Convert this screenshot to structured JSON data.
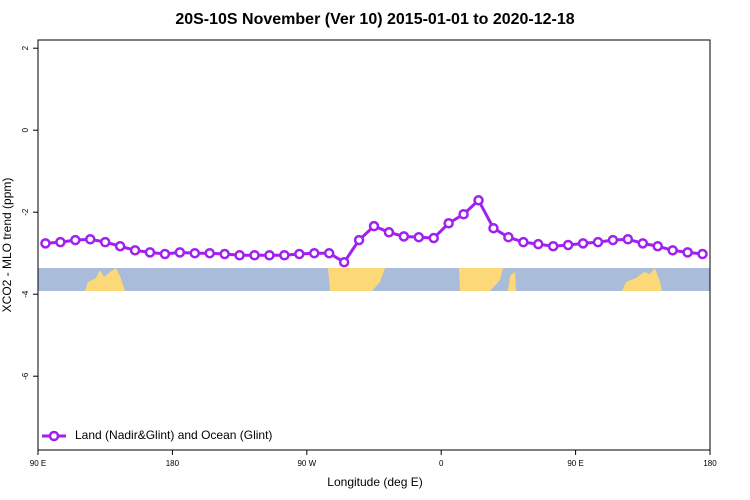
{
  "chart_data": {
    "type": "line",
    "title": "20S-10S November (Ver 10)   2015-01-01 to 2020-12-18",
    "x_label": "Longitude (deg E)",
    "y_label": "XCO2 - MLO trend (ppm)",
    "x": [
      95,
      105,
      115,
      125,
      135,
      145,
      155,
      165,
      175,
      185,
      195,
      205,
      215,
      225,
      235,
      245,
      255,
      265,
      275,
      285,
      295,
      305,
      315,
      325,
      335,
      345,
      355,
      365,
      375,
      385,
      395,
      405,
      415,
      425,
      435,
      445,
      455,
      465,
      475,
      485,
      495,
      505,
      515,
      525,
      535
    ],
    "series": [
      {
        "name": "Land (Nadir&Glint) and Ocean (Glint)",
        "color": "#a020f0",
        "values": [
          -2.76,
          -2.73,
          -2.68,
          -2.66,
          -2.73,
          -2.83,
          -2.93,
          -2.98,
          -3.02,
          -2.98,
          -3.0,
          -3.0,
          -3.02,
          -3.05,
          -3.05,
          -3.05,
          -3.05,
          -3.02,
          -3.0,
          -3.0,
          -3.22,
          -2.68,
          -2.34,
          -2.49,
          -2.59,
          -2.61,
          -2.63,
          -2.27,
          -2.05,
          -1.71,
          -2.39,
          -2.61,
          -2.73,
          -2.78,
          -2.83,
          -2.8,
          -2.76,
          -2.73,
          -2.68,
          -2.66,
          -2.76,
          -2.83,
          -2.93,
          -2.98,
          -3.02
        ]
      }
    ],
    "xlim": [
      90,
      540
    ],
    "xticks": [
      {
        "value": 90,
        "label": "90 E"
      },
      {
        "value": 180,
        "label": "180"
      },
      {
        "value": 270,
        "label": "90 W"
      },
      {
        "value": 360,
        "label": "0"
      },
      {
        "value": 450,
        "label": "90 E"
      },
      {
        "value": 540,
        "label": "180"
      }
    ],
    "ylim": [
      -7.8,
      2.2
    ],
    "yticks": [
      2,
      0,
      -2,
      -4,
      -6
    ],
    "legend": "bottom-left"
  }
}
